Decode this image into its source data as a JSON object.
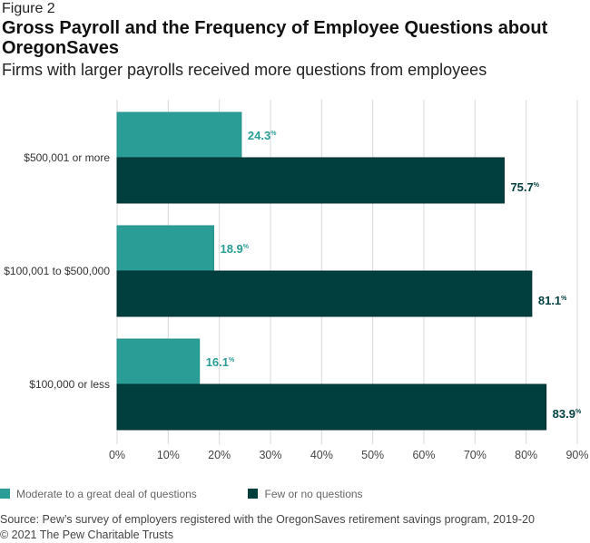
{
  "figure_label": "Figure 2",
  "colors": {
    "moderate": "#2a9d96",
    "few": "#003f3e",
    "grid": "#d8d8d8"
  },
  "chart_data": {
    "type": "bar",
    "orientation": "horizontal",
    "title": "Gross Payroll and the Frequency of Employee Questions about OregonSaves",
    "subtitle": "Firms with larger payrolls received more questions from employees",
    "categories": [
      "$500,001 or more",
      "$100,001 to $500,000",
      "$100,000 or less"
    ],
    "series": [
      {
        "name": "Moderate to a great deal of questions",
        "values": [
          24.3,
          18.9,
          16.1
        ]
      },
      {
        "name": "Few or no questions",
        "values": [
          75.7,
          81.1,
          83.9
        ]
      }
    ],
    "xlim": [
      0,
      90
    ],
    "xticks": [
      "0%",
      "10%",
      "20%",
      "30%",
      "40%",
      "50%",
      "60%",
      "70%",
      "80%",
      "90%"
    ],
    "grid": true,
    "legend": "bottom-left"
  },
  "source": "Source: Pew’s survey of employers registered with the OregonSaves retirement savings program, 2019-20",
  "copyright": "© 2021 The Pew Charitable Trusts"
}
